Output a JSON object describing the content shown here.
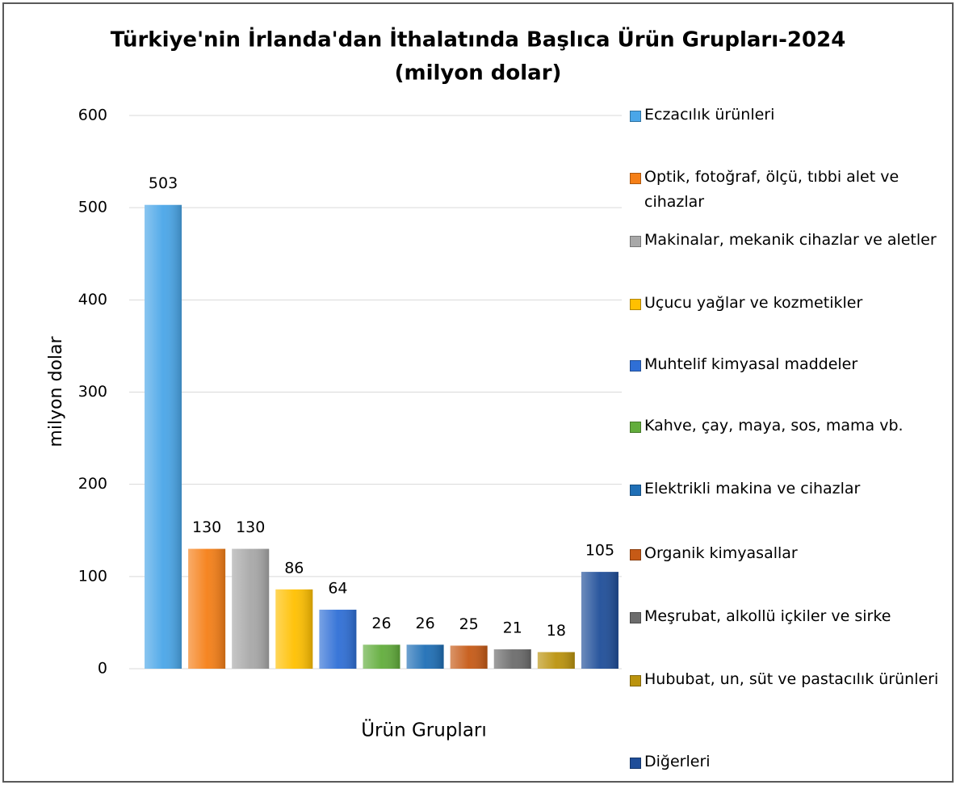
{
  "chart_data": {
    "type": "bar",
    "title": "Türkiye'nin İrlanda'dan İthalatında Başlıca Ürün Grupları-2024",
    "subtitle": "(milyon dolar)",
    "y_label": "milyon dolar",
    "x_label": "Ürün Grupları",
    "categories": [
      "Eczacılık ürünleri",
      "Optik, fotoğraf, ölçü, tıbbi alet ve cihazlar",
      "Makinalar, mekanik cihazlar ve aletler",
      "Uçucu yağlar ve kozmetikler",
      "Muhtelif kimyasal maddeler",
      "Kahve, çay, maya, sos, mama vb.",
      "Elektrikli makina ve cihazlar",
      "Organik kimyasallar",
      "Meşrubat, alkollü içkiler ve sirke",
      "Hububat, un, süt ve pastacılık ürünleri",
      "Diğerleri"
    ],
    "values": [
      503,
      130,
      130,
      86,
      64,
      26,
      26,
      25,
      21,
      18,
      105
    ],
    "colors": [
      "#4aa6e8",
      "#f57f17",
      "#a8a8a8",
      "#ffc000",
      "#2f6fd6",
      "#62ad3c",
      "#1f6fb6",
      "#c65a16",
      "#6c6c6c",
      "#bb930d",
      "#1f4e99"
    ],
    "ylim": [
      0,
      600
    ],
    "yticks": [
      0,
      100,
      200,
      300,
      400,
      500,
      600
    ],
    "grid": true,
    "legend": "right"
  }
}
